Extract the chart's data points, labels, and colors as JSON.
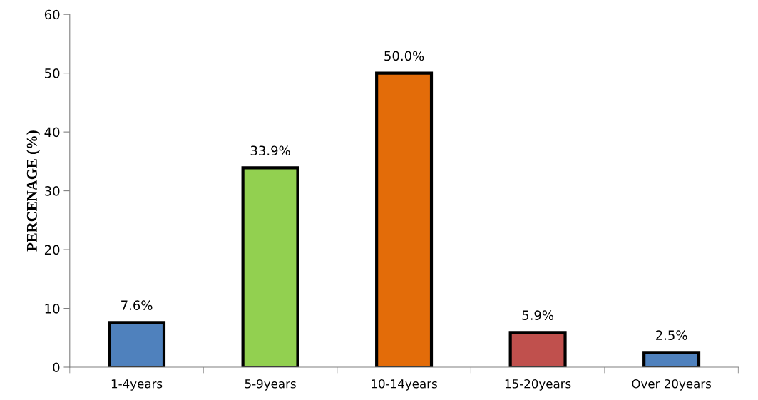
{
  "chart_data": {
    "type": "bar",
    "ylabel": "PERCENAGE (%)",
    "categories": [
      "1-4years",
      "5-9years",
      "10-14years",
      "15-20years",
      "Over 20years"
    ],
    "values": [
      7.6,
      33.9,
      50.0,
      5.9,
      2.5
    ],
    "value_labels": [
      "7.6%",
      "33.9%",
      "50.0%",
      "5.9%",
      "2.5%"
    ],
    "colors": [
      "#4f81bd",
      "#92d050",
      "#e36c09",
      "#c0504d",
      "#4f81bd"
    ],
    "ylim": [
      0,
      60
    ],
    "yticks": [
      0,
      10,
      20,
      30,
      40,
      50,
      60
    ],
    "grid": false,
    "legend": false
  }
}
